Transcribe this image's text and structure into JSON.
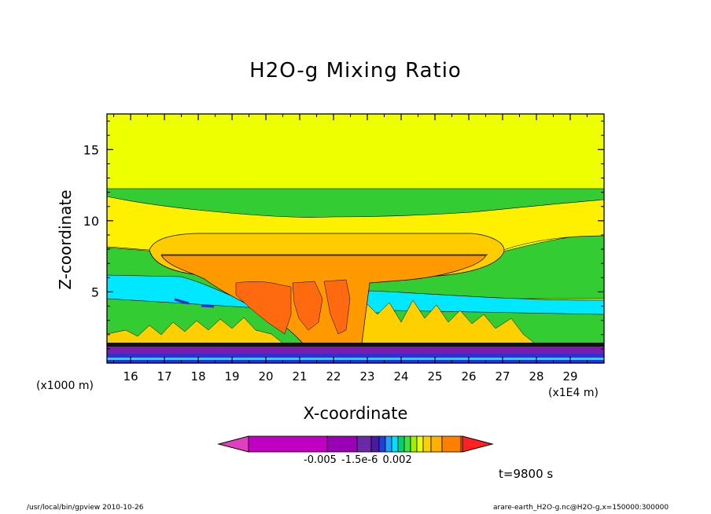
{
  "chart_data": {
    "type": "heatmap",
    "subtype": "filled-contour",
    "title": "H2O-g Mixing Ratio",
    "xlabel": "X-coordinate",
    "ylabel": "Z-coordinate",
    "x_unit": "(x1000 m)",
    "x_scale_note": "(x1E4 m)",
    "x_ticks": [
      "16",
      "17",
      "18",
      "19",
      "20",
      "21",
      "22",
      "23",
      "24",
      "25",
      "26",
      "27",
      "28",
      "29"
    ],
    "x_tick_values": [
      16,
      17,
      18,
      19,
      20,
      21,
      22,
      23,
      24,
      25,
      26,
      27,
      28,
      29
    ],
    "xlim": [
      15.3,
      30.0
    ],
    "y_ticks": [
      "5",
      "10",
      "15"
    ],
    "y_tick_values": [
      5,
      10,
      15
    ],
    "ylim": [
      0,
      17.5
    ],
    "time_label": "t=9800 s",
    "colorbar": {
      "labels": "-0.005  -1.5e-6  0.002",
      "colors": [
        "#e040c0",
        "#c000c0",
        "#9a00b4",
        "#6a2aa8",
        "#4a1aa0",
        "#2040d8",
        "#20a0ff",
        "#00e0ff",
        "#00d070",
        "#40e040",
        "#a0f000",
        "#e8ff00",
        "#ffd000",
        "#ffb000",
        "#ff8000",
        "#ff2020"
      ]
    },
    "color_bands_notes": {
      "upper": "yellow",
      "tropopause_band": "green",
      "anvil": "orange",
      "core": "dark orange",
      "lower_mid": "cyan",
      "surface": "purple / blue"
    }
  },
  "footer": {
    "left": "/usr/local/bin/gpview  2010-10-26",
    "right": "arare-earth_H2O-g.nc@H2O-g,x=150000:300000"
  },
  "colors": {
    "yellow": "#eeff00",
    "lightyellow": "#fff000",
    "green": "#33cc33",
    "lightgreen": "#66dd22",
    "cyan": "#00e8ff",
    "gold": "#ffcc00",
    "orange": "#ff9900",
    "darkorange": "#ff6a10",
    "purple": "#7a1cb0",
    "violet": "#a000c0",
    "blue": "#3030d0"
  }
}
